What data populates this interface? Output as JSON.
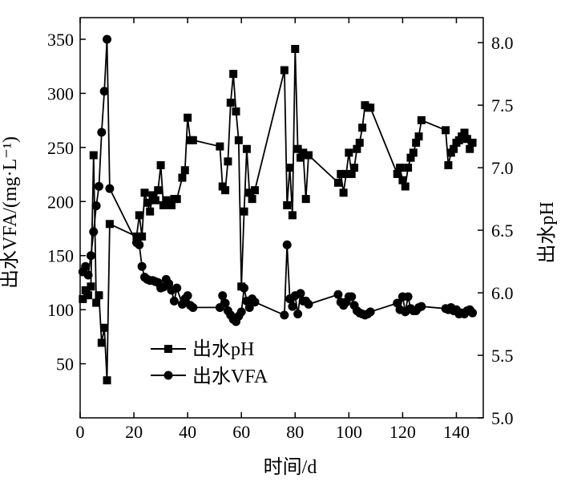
{
  "chart_data": {
    "type": "line",
    "xlabel": "时间/d",
    "ylabel_left": "出水VFA/(mg·L⁻¹)",
    "ylabel_right": "出水pH",
    "xlim": [
      0,
      150
    ],
    "ylim_left": [
      0,
      370
    ],
    "ylim_right": [
      5.0,
      8.2
    ],
    "x_ticks": [
      0,
      20,
      40,
      60,
      80,
      100,
      120,
      140
    ],
    "y_left_ticks": [
      50,
      100,
      150,
      200,
      250,
      300,
      350
    ],
    "y_right_ticks": [
      5.0,
      5.5,
      6.0,
      6.5,
      7.0,
      7.5,
      8.0
    ],
    "legend_position": "lower-left",
    "series": [
      {
        "name": "出水pH",
        "axis": "right",
        "marker": "square",
        "x": [
          1,
          2,
          3,
          4,
          5,
          6,
          7,
          8,
          9,
          10,
          11,
          21,
          22,
          23,
          24,
          25,
          26,
          27,
          28,
          29,
          30,
          31,
          32,
          33,
          34,
          35,
          36,
          38,
          39,
          40,
          41,
          42,
          52,
          53,
          54,
          55,
          56,
          57,
          58,
          59,
          60,
          61,
          62,
          63,
          64,
          65,
          76,
          77,
          78,
          79,
          80,
          81,
          82,
          83,
          84,
          85,
          96,
          97,
          98,
          99,
          100,
          101,
          102,
          103,
          104,
          105,
          106,
          107,
          108,
          118,
          119,
          120,
          121,
          122,
          123,
          124,
          125,
          126,
          127,
          136,
          137,
          138,
          139,
          140,
          141,
          142,
          143,
          144,
          145,
          146
        ],
        "y": [
          5.95,
          6.02,
          5.98,
          6.05,
          7.1,
          5.92,
          5.98,
          5.6,
          5.72,
          5.3,
          6.55,
          6.45,
          6.62,
          6.45,
          6.8,
          6.72,
          6.65,
          6.78,
          6.74,
          6.82,
          7.02,
          6.7,
          6.74,
          6.72,
          6.7,
          6.75,
          6.75,
          6.92,
          6.98,
          7.4,
          7.22,
          7.22,
          7.17,
          6.85,
          6.82,
          7.05,
          7.52,
          7.75,
          7.45,
          7.22,
          6.05,
          6.65,
          7.15,
          6.8,
          6.75,
          6.82,
          7.78,
          6.7,
          7.0,
          6.62,
          7.95,
          7.15,
          7.08,
          7.12,
          6.75,
          7.1,
          6.88,
          6.95,
          6.8,
          6.95,
          7.12,
          6.95,
          7.0,
          7.15,
          7.2,
          7.32,
          7.5,
          7.48,
          7.48,
          6.95,
          7.0,
          6.9,
          6.85,
          7.0,
          7.08,
          7.12,
          7.2,
          7.25,
          7.38,
          7.3,
          7.02,
          7.12,
          7.15,
          7.2,
          7.22,
          7.25,
          7.28,
          7.23,
          7.15,
          7.2
        ],
        "values_left_equivalent_note": ""
      },
      {
        "name": "出水VFA",
        "axis": "left",
        "marker": "circle",
        "x": [
          1,
          2,
          3,
          4,
          5,
          6,
          7,
          8,
          9,
          10,
          11,
          21,
          22,
          23,
          24,
          25,
          26,
          27,
          28,
          29,
          30,
          31,
          32,
          33,
          34,
          35,
          36,
          38,
          39,
          40,
          41,
          42,
          52,
          53,
          54,
          55,
          56,
          57,
          58,
          59,
          60,
          61,
          62,
          63,
          64,
          65,
          76,
          77,
          78,
          79,
          80,
          81,
          82,
          83,
          84,
          85,
          96,
          97,
          98,
          99,
          100,
          101,
          102,
          103,
          104,
          105,
          106,
          107,
          108,
          118,
          119,
          120,
          121,
          122,
          123,
          124,
          125,
          126,
          127,
          136,
          137,
          138,
          139,
          140,
          141,
          142,
          143,
          144,
          145,
          146
        ],
        "y": [
          135,
          140,
          132,
          150,
          172,
          196,
          214,
          264,
          302,
          350,
          212,
          162,
          160,
          140,
          130,
          128,
          127,
          127,
          126,
          125,
          120,
          121,
          128,
          124,
          118,
          108,
          120,
          105,
          110,
          113,
          104,
          102,
          102,
          113,
          106,
          99,
          95,
          91,
          89,
          94,
          98,
          120,
          108,
          102,
          110,
          107,
          95,
          160,
          110,
          103,
          113,
          96,
          115,
          108,
          108,
          105,
          114,
          107,
          104,
          107,
          112,
          112,
          104,
          99,
          97,
          96,
          95,
          96,
          98,
          106,
          100,
          112,
          98,
          112,
          101,
          99,
          99,
          102,
          103,
          101,
          100,
          102,
          99,
          100,
          96,
          97,
          96,
          99,
          100,
          97
        ]
      }
    ]
  }
}
